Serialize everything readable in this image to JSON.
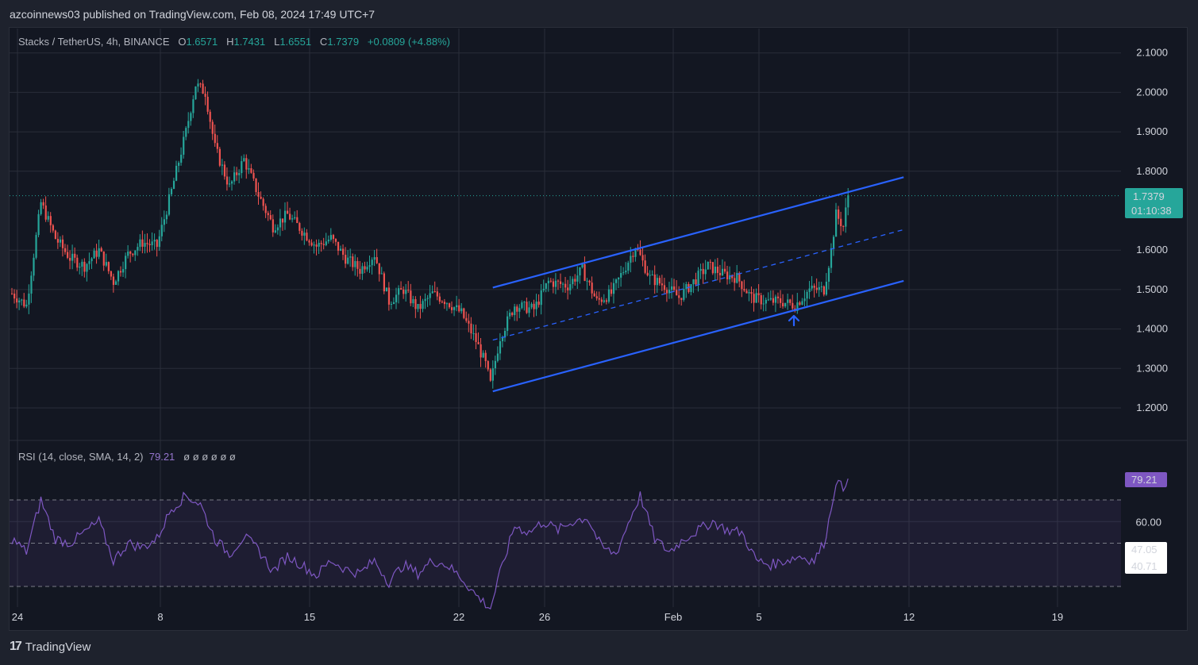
{
  "header": {
    "published": "azcoinnews03 published on TradingView.com, Feb 08, 2024 17:49 UTC+7"
  },
  "legend": {
    "symbol": "Stacks / TetherUS, 4h, BINANCE",
    "o_label": "O",
    "o": "1.6571",
    "h_label": "H",
    "h": "1.7431",
    "l_label": "L",
    "l": "1.6551",
    "c_label": "C",
    "c": "1.7379",
    "change": "+0.0809 (+4.88%)"
  },
  "rsi_legend": {
    "label": "RSI (14, close, SMA, 14, 2)",
    "value": "79.21",
    "extras": "ø ø ø ø ø ø"
  },
  "price_badge": {
    "price": "1.7379",
    "countdown": "01:10:38"
  },
  "rsi_badges": {
    "current": "79.21",
    "sma": "47.05",
    "lower": "40.71"
  },
  "footer": {
    "brand": "TradingView"
  },
  "colors": {
    "up": "#26a69a",
    "down": "#ef5350",
    "channel": "#2962ff",
    "rsi": "#7e57c2"
  },
  "chart_data": [
    {
      "type": "candlestick",
      "title": "Stacks / TetherUS, 4h, BINANCE",
      "y_ticks": [
        "2.1000",
        "2.0000",
        "1.9000",
        "1.8000",
        "1.6000",
        "1.5000",
        "1.4000",
        "1.3000",
        "1.2000"
      ],
      "x_ticks": [
        "24",
        "8",
        "15",
        "22",
        "26",
        "Feb",
        "5",
        "12",
        "19"
      ],
      "ylim": [
        1.17,
        2.13
      ],
      "anchors": [
        {
          "t": 0,
          "p": 1.49
        },
        {
          "t": 6,
          "p": 1.46
        },
        {
          "t": 12,
          "p": 1.72
        },
        {
          "t": 18,
          "p": 1.63
        },
        {
          "t": 24,
          "p": 1.58
        },
        {
          "t": 30,
          "p": 1.56
        },
        {
          "t": 36,
          "p": 1.6
        },
        {
          "t": 42,
          "p": 1.52
        },
        {
          "t": 48,
          "p": 1.59
        },
        {
          "t": 54,
          "p": 1.62
        },
        {
          "t": 60,
          "p": 1.61
        },
        {
          "t": 66,
          "p": 1.75
        },
        {
          "t": 72,
          "p": 1.9
        },
        {
          "t": 76,
          "p": 2.02
        },
        {
          "t": 80,
          "p": 2.0
        },
        {
          "t": 84,
          "p": 1.86
        },
        {
          "t": 90,
          "p": 1.76
        },
        {
          "t": 96,
          "p": 1.83
        },
        {
          "t": 102,
          "p": 1.74
        },
        {
          "t": 108,
          "p": 1.66
        },
        {
          "t": 114,
          "p": 1.69
        },
        {
          "t": 120,
          "p": 1.65
        },
        {
          "t": 126,
          "p": 1.61
        },
        {
          "t": 132,
          "p": 1.63
        },
        {
          "t": 138,
          "p": 1.58
        },
        {
          "t": 144,
          "p": 1.55
        },
        {
          "t": 150,
          "p": 1.59
        },
        {
          "t": 156,
          "p": 1.47
        },
        {
          "t": 162,
          "p": 1.5
        },
        {
          "t": 168,
          "p": 1.45
        },
        {
          "t": 174,
          "p": 1.49
        },
        {
          "t": 180,
          "p": 1.47
        },
        {
          "t": 186,
          "p": 1.44
        },
        {
          "t": 192,
          "p": 1.37
        },
        {
          "t": 196,
          "p": 1.31
        },
        {
          "t": 198,
          "p": 1.26
        },
        {
          "t": 202,
          "p": 1.38
        },
        {
          "t": 208,
          "p": 1.46
        },
        {
          "t": 216,
          "p": 1.45
        },
        {
          "t": 222,
          "p": 1.52
        },
        {
          "t": 230,
          "p": 1.51
        },
        {
          "t": 236,
          "p": 1.55
        },
        {
          "t": 242,
          "p": 1.47
        },
        {
          "t": 248,
          "p": 1.49
        },
        {
          "t": 254,
          "p": 1.56
        },
        {
          "t": 258,
          "p": 1.61
        },
        {
          "t": 264,
          "p": 1.53
        },
        {
          "t": 270,
          "p": 1.51
        },
        {
          "t": 276,
          "p": 1.48
        },
        {
          "t": 282,
          "p": 1.52
        },
        {
          "t": 288,
          "p": 1.56
        },
        {
          "t": 294,
          "p": 1.54
        },
        {
          "t": 300,
          "p": 1.53
        },
        {
          "t": 306,
          "p": 1.48
        },
        {
          "t": 312,
          "p": 1.47
        },
        {
          "t": 318,
          "p": 1.47
        },
        {
          "t": 324,
          "p": 1.46
        },
        {
          "t": 330,
          "p": 1.5
        },
        {
          "t": 336,
          "p": 1.5
        },
        {
          "t": 339,
          "p": 1.6
        },
        {
          "t": 341,
          "p": 1.69
        },
        {
          "t": 344,
          "p": 1.66
        },
        {
          "t": 346,
          "p": 1.74
        }
      ],
      "channel": {
        "upper": [
          [
            199,
            1.505
          ],
          [
            369,
            1.785
          ]
        ],
        "middle": [
          [
            199,
            1.372
          ],
          [
            369,
            1.652
          ]
        ],
        "lower": [
          [
            199,
            1.242
          ],
          [
            369,
            1.522
          ]
        ]
      },
      "last_price_line": 1.7379
    },
    {
      "type": "line",
      "title": "RSI (14, close, SMA, 14, 2)",
      "y_ticks": [
        "60.00"
      ],
      "ylim": [
        14,
        96
      ],
      "bands": [
        30,
        50,
        70
      ],
      "anchors": [
        {
          "t": 0,
          "v": 52
        },
        {
          "t": 6,
          "v": 46
        },
        {
          "t": 12,
          "v": 70
        },
        {
          "t": 18,
          "v": 52
        },
        {
          "t": 24,
          "v": 50
        },
        {
          "t": 30,
          "v": 55
        },
        {
          "t": 36,
          "v": 60
        },
        {
          "t": 42,
          "v": 42
        },
        {
          "t": 48,
          "v": 50
        },
        {
          "t": 54,
          "v": 48
        },
        {
          "t": 60,
          "v": 52
        },
        {
          "t": 66,
          "v": 66
        },
        {
          "t": 72,
          "v": 72
        },
        {
          "t": 78,
          "v": 68
        },
        {
          "t": 84,
          "v": 52
        },
        {
          "t": 90,
          "v": 45
        },
        {
          "t": 96,
          "v": 53
        },
        {
          "t": 102,
          "v": 47
        },
        {
          "t": 108,
          "v": 37
        },
        {
          "t": 114,
          "v": 44
        },
        {
          "t": 120,
          "v": 40
        },
        {
          "t": 126,
          "v": 35
        },
        {
          "t": 132,
          "v": 42
        },
        {
          "t": 138,
          "v": 38
        },
        {
          "t": 144,
          "v": 36
        },
        {
          "t": 150,
          "v": 42
        },
        {
          "t": 156,
          "v": 32
        },
        {
          "t": 162,
          "v": 40
        },
        {
          "t": 168,
          "v": 36
        },
        {
          "t": 174,
          "v": 42
        },
        {
          "t": 180,
          "v": 40
        },
        {
          "t": 186,
          "v": 34
        },
        {
          "t": 192,
          "v": 26
        },
        {
          "t": 196,
          "v": 22
        },
        {
          "t": 198,
          "v": 20
        },
        {
          "t": 202,
          "v": 36
        },
        {
          "t": 208,
          "v": 58
        },
        {
          "t": 214,
          "v": 55
        },
        {
          "t": 220,
          "v": 60
        },
        {
          "t": 226,
          "v": 56
        },
        {
          "t": 232,
          "v": 60
        },
        {
          "t": 238,
          "v": 62
        },
        {
          "t": 244,
          "v": 48
        },
        {
          "t": 250,
          "v": 45
        },
        {
          "t": 256,
          "v": 62
        },
        {
          "t": 260,
          "v": 72
        },
        {
          "t": 266,
          "v": 52
        },
        {
          "t": 272,
          "v": 46
        },
        {
          "t": 278,
          "v": 52
        },
        {
          "t": 284,
          "v": 56
        },
        {
          "t": 290,
          "v": 60
        },
        {
          "t": 296,
          "v": 56
        },
        {
          "t": 302,
          "v": 55
        },
        {
          "t": 308,
          "v": 42
        },
        {
          "t": 314,
          "v": 40
        },
        {
          "t": 320,
          "v": 42
        },
        {
          "t": 326,
          "v": 44
        },
        {
          "t": 332,
          "v": 42
        },
        {
          "t": 336,
          "v": 50
        },
        {
          "t": 338,
          "v": 60
        },
        {
          "t": 341,
          "v": 79
        },
        {
          "t": 344,
          "v": 75
        },
        {
          "t": 346,
          "v": 82
        }
      ]
    }
  ]
}
